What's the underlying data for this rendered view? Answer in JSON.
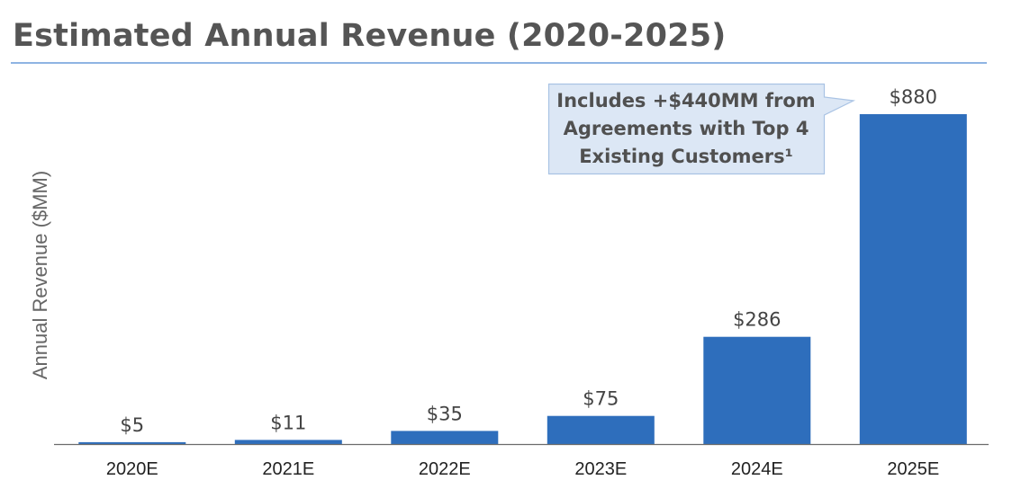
{
  "page": {
    "title": "Estimated Annual Revenue (2020-2025)"
  },
  "chart_data": {
    "type": "bar",
    "title": "Estimated Annual Revenue (2020-2025)",
    "xlabel": "",
    "ylabel": "Annual Revenue ($MM)",
    "categories": [
      "2020E",
      "2021E",
      "2022E",
      "2023E",
      "2024E",
      "2025E"
    ],
    "values": [
      5,
      11,
      35,
      75,
      286,
      880
    ],
    "value_labels": [
      "$5",
      "$11",
      "$35",
      "$75",
      "$286",
      "$880"
    ],
    "ylim": [
      0,
      880
    ],
    "grid": false,
    "legend": "none",
    "bar_color": "#2e6ebc",
    "annotation": {
      "lines": [
        "Includes +$440MM from",
        "Agreements with Top 4",
        "Existing Customers¹"
      ],
      "points_to": "2025E",
      "fill": "#dce7f5",
      "border": "#a9c3e4"
    }
  }
}
